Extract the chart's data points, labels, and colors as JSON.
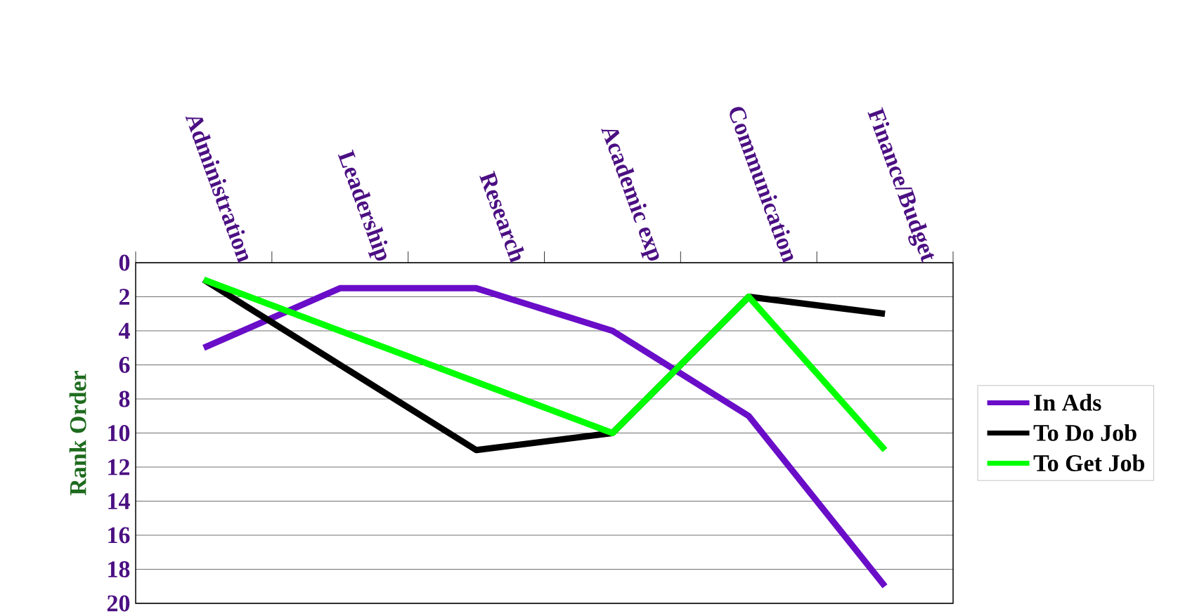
{
  "chart_data": {
    "type": "line",
    "ylabel": "Rank Order",
    "categories": [
      "Administration",
      "Leadership",
      "Research",
      "Academic exp",
      "Communication",
      "Finance/Budget"
    ],
    "series": [
      {
        "name": "In Ads",
        "color": "#6a0dc8",
        "values": [
          5,
          1.5,
          1.5,
          4,
          9,
          19
        ]
      },
      {
        "name": "To Do Job",
        "color": "#000000",
        "values": [
          1,
          6,
          11,
          10,
          2,
          3
        ]
      },
      {
        "name": "To Get Job",
        "color": "#00ff00",
        "values": [
          1,
          4,
          7,
          10,
          2,
          11
        ]
      }
    ],
    "ylim": [
      20,
      0
    ],
    "yticks": [
      0,
      2,
      4,
      6,
      8,
      10,
      12,
      14,
      16,
      18,
      20
    ],
    "grid": "y",
    "legend": "right"
  }
}
